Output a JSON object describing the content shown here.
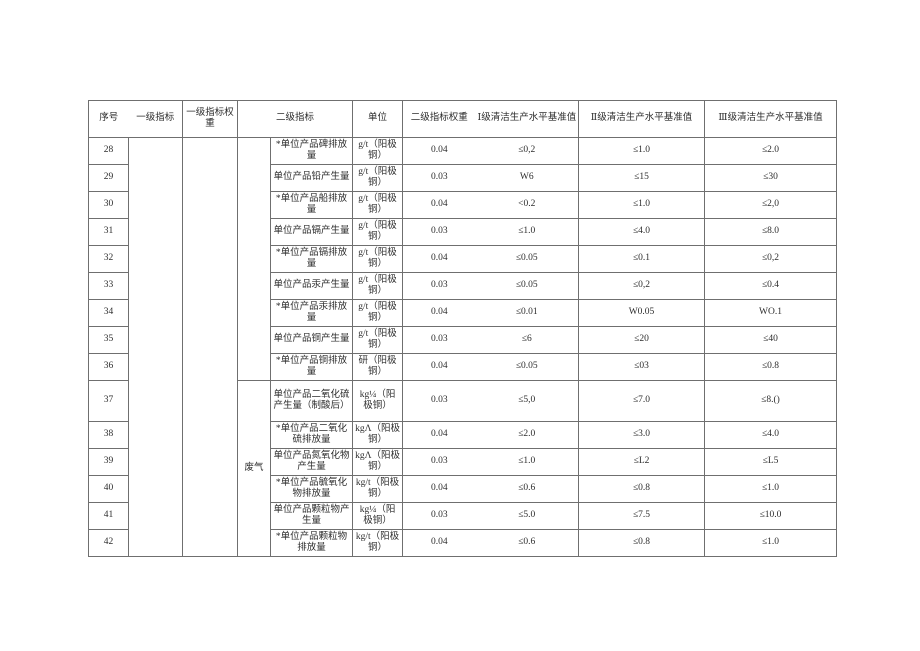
{
  "table": {
    "headers": {
      "serial": "序号",
      "level1": "一级指标",
      "level1_weight": "一级指标权重",
      "level2": "二级指标",
      "unit": "单位",
      "level2_weight": "二级指标权重",
      "grade1": "Ⅰ级清洁生产水平基准值",
      "grade2": "Ⅱ级清洁生产水平基准值",
      "grade3": "Ⅲ级清洁生产水平基准值"
    },
    "groups": [
      {
        "label": "",
        "span": 9
      },
      {
        "label": "废气",
        "span": 6
      }
    ],
    "rows": [
      {
        "no": "28",
        "indicator": "*单位产品碑排放量",
        "unit": "g/t（阳极铜）",
        "weight": "0.04",
        "g1": "≤0,2",
        "g2": "≤1.0",
        "g3": "≤2.0"
      },
      {
        "no": "29",
        "indicator": "单位产品铅产生量",
        "unit": "g/t（阳极铜）",
        "weight": "0.03",
        "g1": "W6",
        "g2": "≤15",
        "g3": "≤30"
      },
      {
        "no": "30",
        "indicator": "*单位产品船排放量",
        "unit": "g/t（阳极铜）",
        "weight": "0.04",
        "g1": "<0.2",
        "g2": "≤1.0",
        "g3": "≤2,0"
      },
      {
        "no": "31",
        "indicator": "单位产品镉产生量",
        "unit": "g/t（阳极铜）",
        "weight": "0.03",
        "g1": "≤1.0",
        "g2": "≤4.0",
        "g3": "≤8.0"
      },
      {
        "no": "32",
        "indicator": "*单位产品镉排放量",
        "unit": "g/t（阳极铜）",
        "weight": "0.04",
        "g1": "≤0.05",
        "g2": "≤0.1",
        "g3": "≤0,2"
      },
      {
        "no": "33",
        "indicator": "单位产品汞产生量",
        "unit": "g/t（阳极铜）",
        "weight": "0.03",
        "g1": "≤0.05",
        "g2": "≤0,2",
        "g3": "≤0.4"
      },
      {
        "no": "34",
        "indicator": "*单位产品汞排放量",
        "unit": "g/t（阳极铜）",
        "weight": "0.04",
        "g1": "≤0.01",
        "g2": "W0.05",
        "g3": "WO.1"
      },
      {
        "no": "35",
        "indicator": "单位产品铜产生量",
        "unit": "g/t（阳极铜）",
        "weight": "0.03",
        "g1": "≤6",
        "g2": "≤20",
        "g3": "≤40"
      },
      {
        "no": "36",
        "indicator": "*单位产品铜排放量",
        "unit": "研（阳极铜）",
        "weight": "0.04",
        "g1": "≤0.05",
        "g2": "≤03",
        "g3": "≤0.8"
      },
      {
        "no": "37",
        "indicator": "单位产品二氧化硫产生量（制酸后）",
        "unit": "kg¼（阳极铜）",
        "weight": "0.03",
        "g1": "≤5,0",
        "g2": "≤7.0",
        "g3": "≤8.()"
      },
      {
        "no": "38",
        "indicator": "*单位产品二氧化硫排放量",
        "unit": "kgΛ（阳极铜）",
        "weight": "0.04",
        "g1": "≤2.0",
        "g2": "≤3.0",
        "g3": "≤4.0"
      },
      {
        "no": "39",
        "indicator": "单位产品氮氧化物产生量",
        "unit": "kgΛ（阳极铜）",
        "weight": "0.03",
        "g1": "≤1.0",
        "g2": "≤L2",
        "g3": "≤L5"
      },
      {
        "no": "40",
        "indicator": "*单位产品毓氧化物排放量",
        "unit": "kg/t（阳极铜）",
        "weight": "0.04",
        "g1": "≤0.6",
        "g2": "≤0.8",
        "g3": "≤1.0"
      },
      {
        "no": "41",
        "indicator": "单位产品颗粒物产生量",
        "unit": "kg¼（阳极铜）",
        "weight": "0.03",
        "g1": "≤5.0",
        "g2": "≤7.5",
        "g3": "≤10.0"
      },
      {
        "no": "42",
        "indicator": "*单位产品颗粒物排放量",
        "unit": "kg/t（阳极铜）",
        "weight": "0.04",
        "g1": "≤0.6",
        "g2": "≤0.8",
        "g3": "≤1.0"
      }
    ]
  }
}
